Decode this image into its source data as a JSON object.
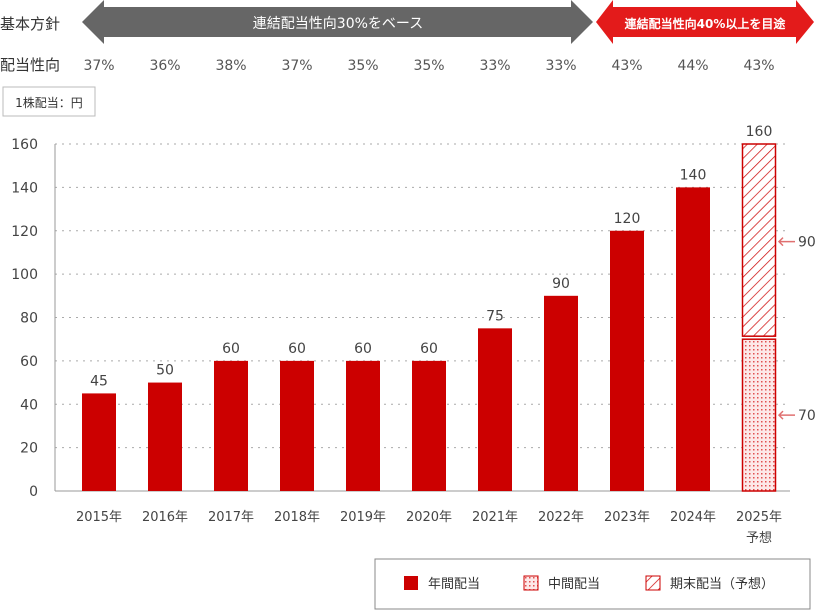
{
  "policy": {
    "row_label": "基本方針",
    "gray_band": "連結配当性向30%をベース",
    "red_band": "連結配当性向40%以上を目途",
    "colors": {
      "gray": "#666666",
      "red": "#e31b1b"
    }
  },
  "payout": {
    "row_label": "配当性向",
    "values": [
      "37%",
      "36%",
      "38%",
      "37%",
      "35%",
      "35%",
      "33%",
      "33%",
      "43%",
      "44%",
      "43%"
    ]
  },
  "unit_label": "1株配当：円",
  "chart_data": {
    "type": "bar",
    "categories": [
      "2015年",
      "2016年",
      "2017年",
      "2018年",
      "2019年",
      "2020年",
      "2021年",
      "2022年",
      "2023年",
      "2024年",
      "2025年"
    ],
    "category_sub": [
      "",
      "",
      "",
      "",
      "",
      "",
      "",
      "",
      "",
      "",
      "予想"
    ],
    "values": [
      45,
      50,
      60,
      60,
      60,
      60,
      75,
      90,
      120,
      140,
      160
    ],
    "forecast_breakdown": {
      "interim": 70,
      "year_end": 90
    },
    "ylim": [
      0,
      160
    ],
    "yticks": [
      0,
      20,
      40,
      60,
      80,
      100,
      120,
      140,
      160
    ],
    "grid": true,
    "legend_placement": "bottom-right",
    "colors": {
      "bar": "#cc0000"
    },
    "legend": [
      "年間配当",
      "中間配当",
      "期末配当（予想）"
    ]
  }
}
